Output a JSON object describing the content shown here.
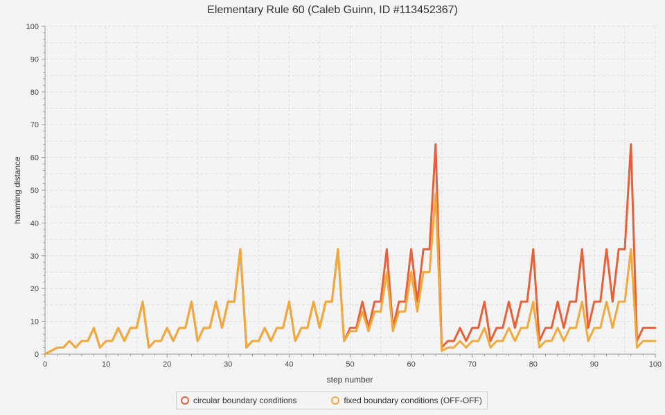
{
  "chart_data": {
    "type": "line",
    "title": "Elementary Rule 60 (Caleb Guinn, ID #113452367)",
    "xlabel": "step number",
    "ylabel": "hamming distance",
    "xlim": [
      0,
      100
    ],
    "ylim": [
      0,
      100
    ],
    "x_ticks": [
      0,
      10,
      20,
      30,
      40,
      50,
      60,
      70,
      80,
      90,
      100
    ],
    "y_ticks": [
      0,
      10,
      20,
      30,
      40,
      50,
      60,
      70,
      80,
      90,
      100
    ],
    "grid": true,
    "legend_position": "bottom",
    "x": [
      0,
      1,
      2,
      3,
      4,
      5,
      6,
      7,
      8,
      9,
      10,
      11,
      12,
      13,
      14,
      15,
      16,
      17,
      18,
      19,
      20,
      21,
      22,
      23,
      24,
      25,
      26,
      27,
      28,
      29,
      30,
      31,
      32,
      33,
      34,
      35,
      36,
      37,
      38,
      39,
      40,
      41,
      42,
      43,
      44,
      45,
      46,
      47,
      48,
      49,
      50,
      51,
      52,
      53,
      54,
      55,
      56,
      57,
      58,
      59,
      60,
      61,
      62,
      63,
      64,
      65,
      66,
      67,
      68,
      69,
      70,
      71,
      72,
      73,
      74,
      75,
      76,
      77,
      78,
      79,
      80,
      81,
      82,
      83,
      84,
      85,
      86,
      87,
      88,
      89,
      90,
      91,
      92,
      93,
      94,
      95,
      96,
      97,
      98,
      99,
      100
    ],
    "series": [
      {
        "name": "circular boundary conditions",
        "color": "#e8603a",
        "values": [
          0,
          1,
          2,
          2,
          4,
          2,
          4,
          4,
          8,
          2,
          4,
          4,
          8,
          4,
          8,
          8,
          16,
          2,
          4,
          4,
          8,
          4,
          8,
          8,
          16,
          4,
          8,
          8,
          16,
          8,
          16,
          16,
          32,
          2,
          4,
          4,
          8,
          4,
          8,
          8,
          16,
          4,
          8,
          8,
          16,
          8,
          16,
          16,
          32,
          4,
          8,
          8,
          16,
          8,
          16,
          16,
          32,
          8,
          16,
          16,
          32,
          16,
          32,
          32,
          64,
          2,
          4,
          4,
          8,
          4,
          8,
          8,
          16,
          4,
          8,
          8,
          16,
          8,
          16,
          16,
          32,
          4,
          8,
          8,
          16,
          8,
          16,
          16,
          32,
          8,
          16,
          16,
          32,
          16,
          32,
          32,
          64,
          4,
          8,
          8,
          8
        ]
      },
      {
        "name": "fixed boundary conditions (OFF-OFF)",
        "color": "#f2a93b",
        "values": [
          0,
          1,
          2,
          2,
          4,
          2,
          4,
          4,
          8,
          2,
          4,
          4,
          8,
          4,
          8,
          8,
          16,
          2,
          4,
          4,
          8,
          4,
          8,
          8,
          16,
          4,
          8,
          8,
          16,
          8,
          16,
          16,
          32,
          2,
          4,
          4,
          8,
          4,
          8,
          8,
          16,
          4,
          8,
          8,
          16,
          8,
          16,
          16,
          32,
          4,
          7,
          7,
          13,
          7,
          13,
          13,
          25,
          7,
          13,
          13,
          25,
          13,
          25,
          25,
          49,
          1,
          2,
          2,
          4,
          2,
          4,
          4,
          8,
          2,
          4,
          4,
          8,
          4,
          8,
          8,
          16,
          2,
          4,
          4,
          8,
          4,
          8,
          8,
          16,
          4,
          8,
          8,
          16,
          8,
          16,
          16,
          32,
          2,
          4,
          4,
          4
        ]
      }
    ]
  }
}
